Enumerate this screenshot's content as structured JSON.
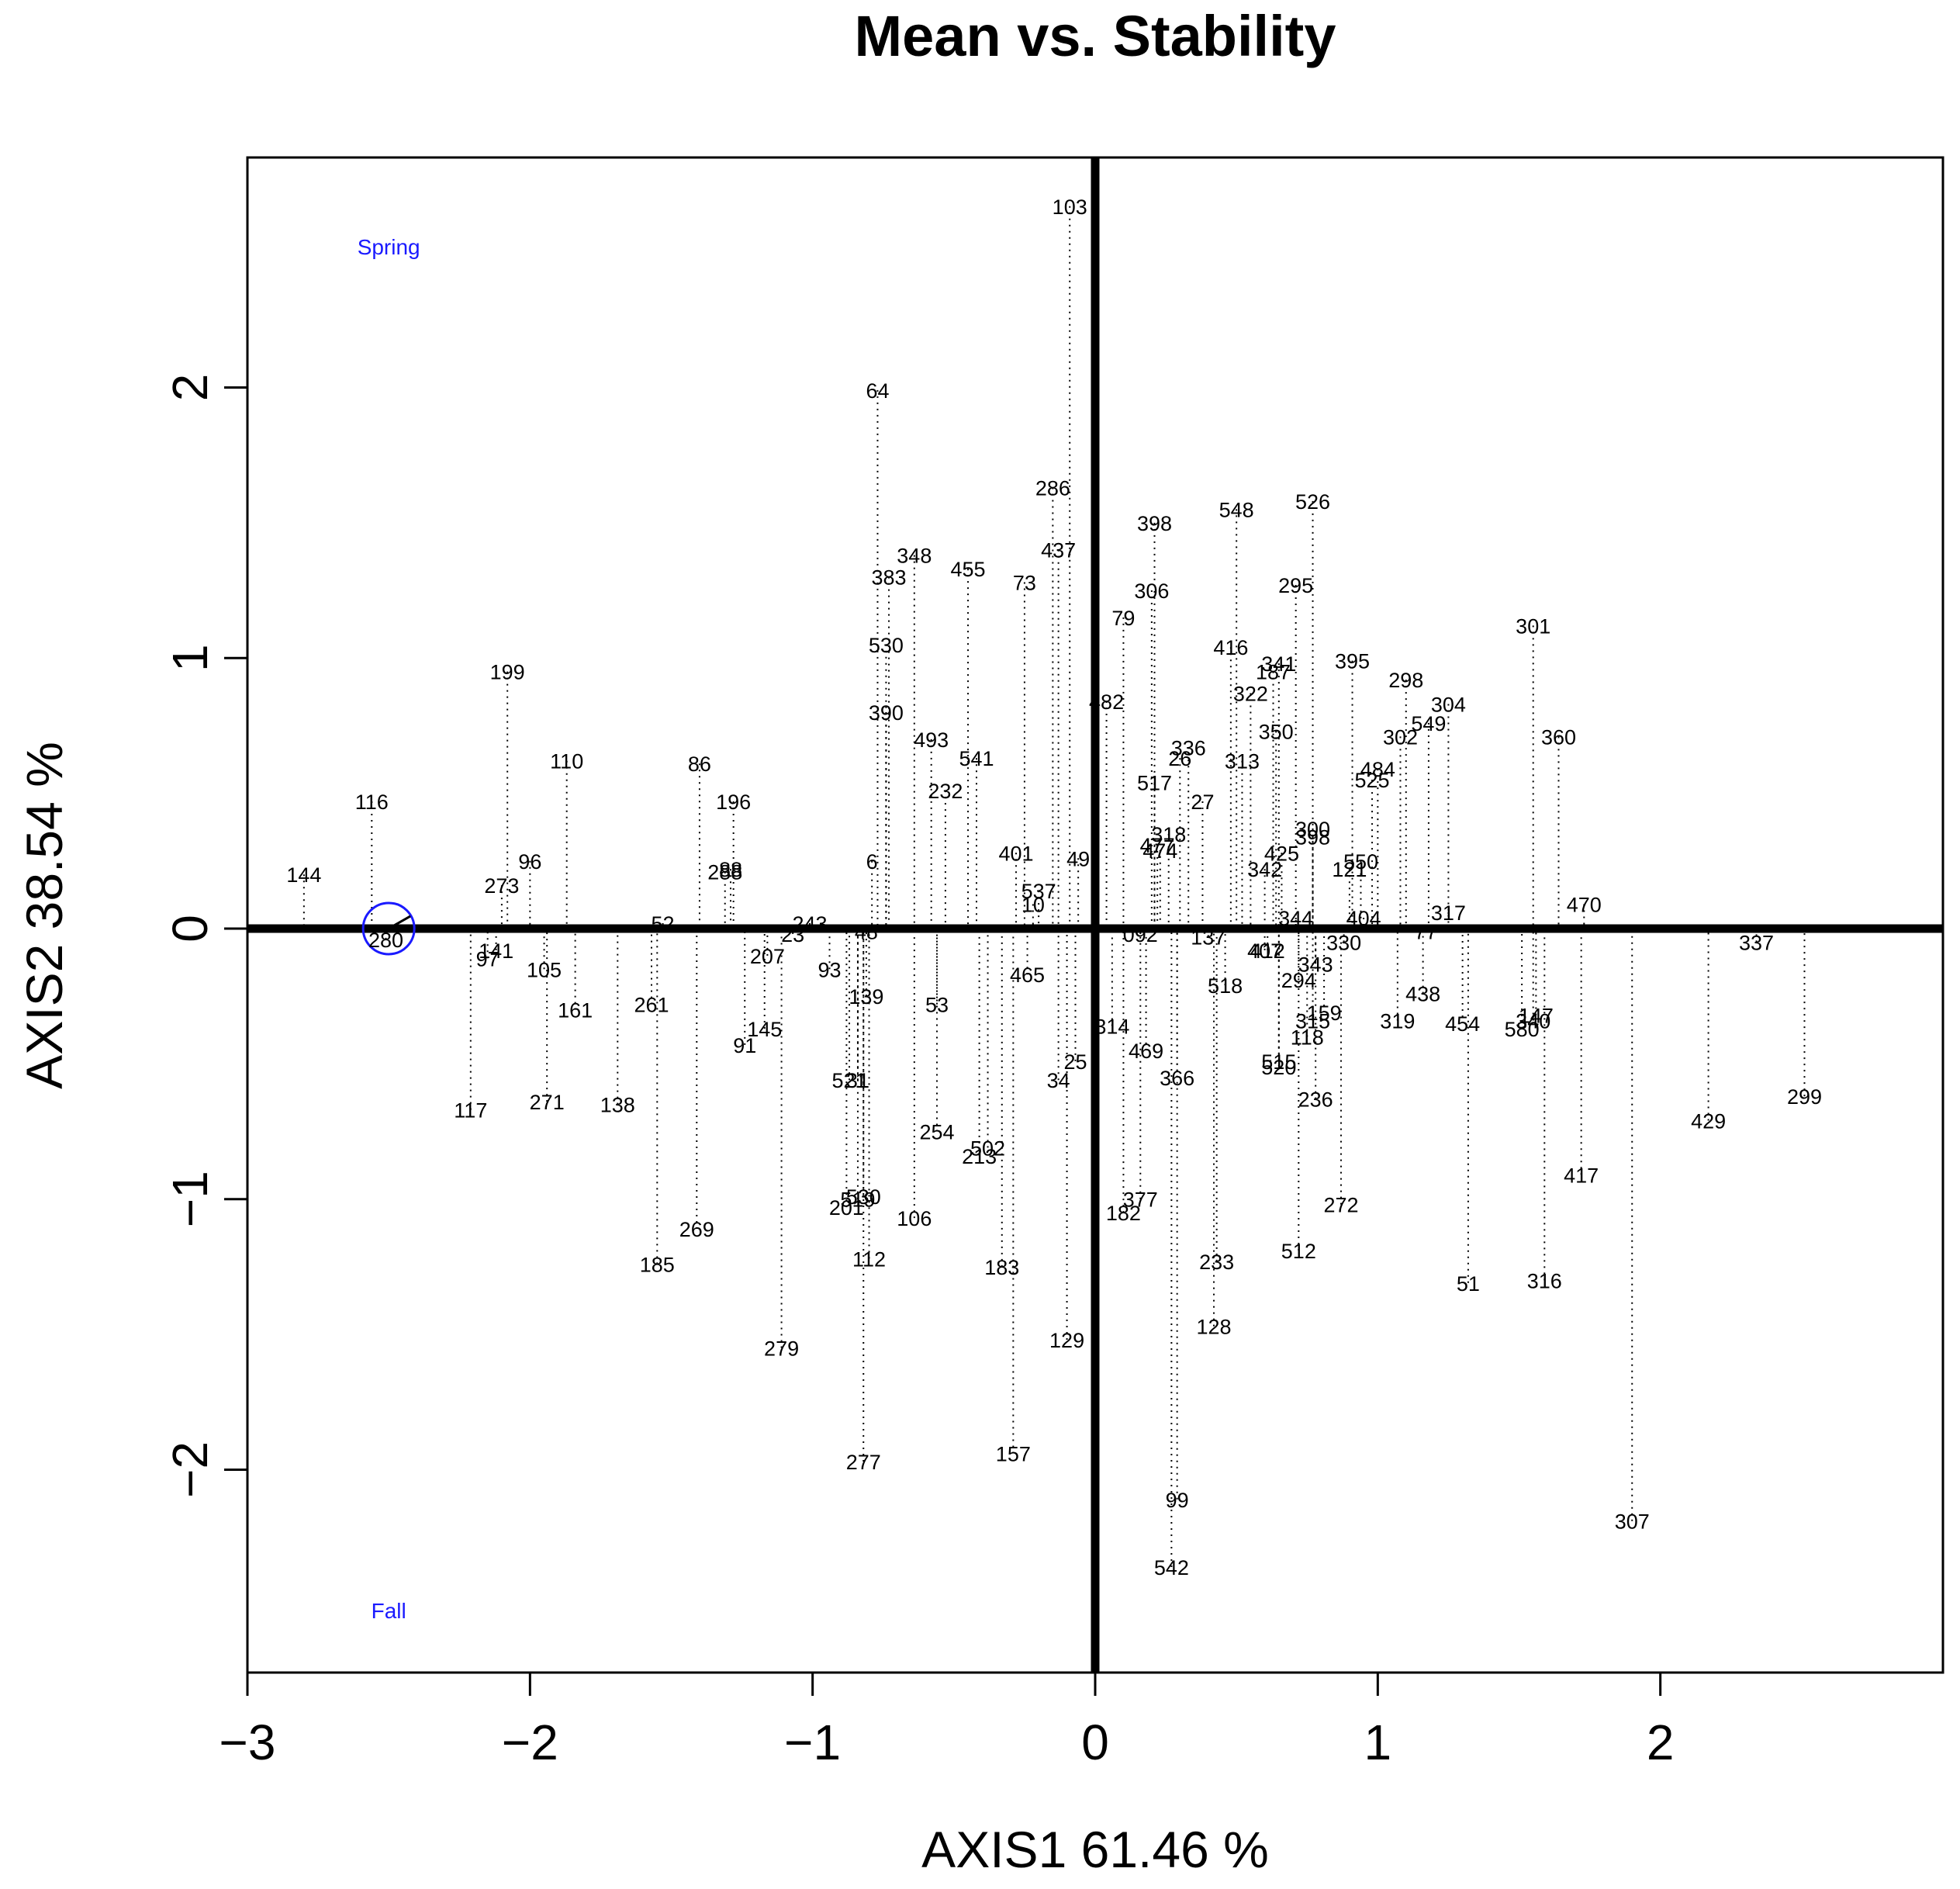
{
  "chart_data": {
    "type": "scatter",
    "title": "Mean vs. Stability",
    "xlabel": "AXIS1 61.46 %",
    "ylabel": "AXIS2 38.54 %",
    "xlim": [
      -3.0,
      3.0
    ],
    "ylim": [
      -2.75,
      2.85
    ],
    "xticks": [
      {
        "value": -3,
        "label": "−3"
      },
      {
        "value": -2,
        "label": "−2"
      },
      {
        "value": -1,
        "label": "−1"
      },
      {
        "value": 0,
        "label": "0"
      },
      {
        "value": 1,
        "label": "1"
      },
      {
        "value": 2,
        "label": "2"
      }
    ],
    "yticks": [
      {
        "value": -2,
        "label": "−2"
      },
      {
        "value": -1,
        "label": "−1"
      },
      {
        "value": 0,
        "label": "0"
      },
      {
        "value": 1,
        "label": "1"
      },
      {
        "value": 2,
        "label": "2"
      }
    ],
    "environments": [
      {
        "name": "Spring",
        "x": -2.5,
        "y": 2.52
      },
      {
        "name": "Fall",
        "x": -2.5,
        "y": -2.52
      }
    ],
    "average_environment": {
      "x": -2.5,
      "y": 0.0
    },
    "colors": {
      "axis": "#000000",
      "environment": "#1a1aff"
    },
    "genotypes": [
      {
        "label": "103",
        "x": -0.09,
        "y": 2.67
      },
      {
        "label": "64",
        "x": -0.77,
        "y": 1.99
      },
      {
        "label": "286",
        "x": -0.15,
        "y": 1.63
      },
      {
        "label": "437",
        "x": -0.13,
        "y": 1.4
      },
      {
        "label": "398",
        "x": 0.21,
        "y": 1.5
      },
      {
        "label": "548",
        "x": 0.5,
        "y": 1.55
      },
      {
        "label": "526",
        "x": 0.77,
        "y": 1.58
      },
      {
        "label": "348",
        "x": -0.64,
        "y": 1.38
      },
      {
        "label": "455",
        "x": -0.45,
        "y": 1.33
      },
      {
        "label": "383",
        "x": -0.73,
        "y": 1.3
      },
      {
        "label": "73",
        "x": -0.25,
        "y": 1.28
      },
      {
        "label": "306",
        "x": 0.2,
        "y": 1.25
      },
      {
        "label": "295",
        "x": 0.71,
        "y": 1.27
      },
      {
        "label": "79",
        "x": 0.1,
        "y": 1.15
      },
      {
        "label": "301",
        "x": 1.55,
        "y": 1.12
      },
      {
        "label": "530",
        "x": -0.74,
        "y": 1.05
      },
      {
        "label": "416",
        "x": 0.48,
        "y": 1.04
      },
      {
        "label": "341",
        "x": 0.65,
        "y": 0.98
      },
      {
        "label": "187",
        "x": 0.63,
        "y": 0.95
      },
      {
        "label": "395",
        "x": 0.91,
        "y": 0.99
      },
      {
        "label": "298",
        "x": 1.1,
        "y": 0.92
      },
      {
        "label": "322",
        "x": 0.55,
        "y": 0.87
      },
      {
        "label": "482",
        "x": 0.04,
        "y": 0.84
      },
      {
        "label": "304",
        "x": 1.25,
        "y": 0.83
      },
      {
        "label": "390",
        "x": -0.74,
        "y": 0.8
      },
      {
        "label": "549",
        "x": 1.18,
        "y": 0.76
      },
      {
        "label": "350",
        "x": 0.64,
        "y": 0.73
      },
      {
        "label": "360",
        "x": 1.64,
        "y": 0.71
      },
      {
        "label": "302",
        "x": 1.08,
        "y": 0.71
      },
      {
        "label": "493",
        "x": -0.58,
        "y": 0.7
      },
      {
        "label": "336",
        "x": 0.33,
        "y": 0.67
      },
      {
        "label": "541",
        "x": -0.42,
        "y": 0.63
      },
      {
        "label": "26",
        "x": 0.3,
        "y": 0.63
      },
      {
        "label": "313",
        "x": 0.52,
        "y": 0.62
      },
      {
        "label": "484",
        "x": 1.0,
        "y": 0.59
      },
      {
        "label": "525",
        "x": 0.98,
        "y": 0.55
      },
      {
        "label": "517",
        "x": 0.21,
        "y": 0.54
      },
      {
        "label": "232",
        "x": -0.53,
        "y": 0.51
      },
      {
        "label": "27",
        "x": 0.38,
        "y": 0.47
      },
      {
        "label": "300",
        "x": 0.77,
        "y": 0.37
      },
      {
        "label": "318",
        "x": 0.26,
        "y": 0.35
      },
      {
        "label": "398",
        "x": 0.77,
        "y": 0.34
      },
      {
        "label": "477",
        "x": 0.22,
        "y": 0.31
      },
      {
        "label": "474",
        "x": 0.23,
        "y": 0.29
      },
      {
        "label": "425",
        "x": 0.66,
        "y": 0.28
      },
      {
        "label": "401",
        "x": -0.28,
        "y": 0.28
      },
      {
        "label": "550",
        "x": 0.94,
        "y": 0.25
      },
      {
        "label": "49",
        "x": -0.06,
        "y": 0.26
      },
      {
        "label": "6",
        "x": -0.79,
        "y": 0.25
      },
      {
        "label": "342",
        "x": 0.6,
        "y": 0.22
      },
      {
        "label": "121",
        "x": 0.9,
        "y": 0.22
      },
      {
        "label": "537",
        "x": -0.2,
        "y": 0.14
      },
      {
        "label": "10",
        "x": -0.22,
        "y": 0.09
      },
      {
        "label": "470",
        "x": 1.73,
        "y": 0.09
      },
      {
        "label": "317",
        "x": 1.25,
        "y": 0.06
      },
      {
        "label": "344",
        "x": 0.71,
        "y": 0.04
      },
      {
        "label": "404",
        "x": 0.95,
        "y": 0.04
      },
      {
        "label": "243",
        "x": -1.01,
        "y": 0.02
      },
      {
        "label": "52",
        "x": -1.53,
        "y": 0.02
      },
      {
        "label": "23",
        "x": -1.07,
        "y": -0.02
      },
      {
        "label": "48",
        "x": -0.81,
        "y": -0.01
      },
      {
        "label": "77",
        "x": 1.17,
        "y": -0.01
      },
      {
        "label": "137",
        "x": 0.4,
        "y": -0.03
      },
      {
        "label": "092",
        "x": 0.16,
        "y": -0.02
      },
      {
        "label": "330",
        "x": 0.88,
        "y": -0.05
      },
      {
        "label": "407",
        "x": 0.6,
        "y": -0.08
      },
      {
        "label": "412",
        "x": 0.61,
        "y": -0.08
      },
      {
        "label": "337",
        "x": 2.34,
        "y": -0.05
      },
      {
        "label": "141",
        "x": -2.12,
        "y": -0.08
      },
      {
        "label": "97",
        "x": -2.15,
        "y": -0.11
      },
      {
        "label": "207",
        "x": -1.16,
        "y": -0.1
      },
      {
        "label": "343",
        "x": 0.78,
        "y": -0.13
      },
      {
        "label": "105",
        "x": -1.95,
        "y": -0.15
      },
      {
        "label": "93",
        "x": -0.94,
        "y": -0.15
      },
      {
        "label": "465",
        "x": -0.24,
        "y": -0.17
      },
      {
        "label": "294",
        "x": 0.72,
        "y": -0.19
      },
      {
        "label": "518",
        "x": 0.46,
        "y": -0.21
      },
      {
        "label": "438",
        "x": 1.16,
        "y": -0.24
      },
      {
        "label": "139",
        "x": -0.81,
        "y": -0.25
      },
      {
        "label": "261",
        "x": -1.57,
        "y": -0.28
      },
      {
        "label": "53",
        "x": -0.56,
        "y": -0.28
      },
      {
        "label": "161",
        "x": -1.84,
        "y": -0.3
      },
      {
        "label": "159",
        "x": 0.81,
        "y": -0.31
      },
      {
        "label": "319",
        "x": 1.07,
        "y": -0.34
      },
      {
        "label": "454",
        "x": 1.3,
        "y": -0.35
      },
      {
        "label": "147",
        "x": 1.56,
        "y": -0.32
      },
      {
        "label": "340",
        "x": 1.55,
        "y": -0.34
      },
      {
        "label": "580",
        "x": 1.51,
        "y": -0.37
      },
      {
        "label": "315",
        "x": 0.77,
        "y": -0.34
      },
      {
        "label": "145",
        "x": -1.17,
        "y": -0.37
      },
      {
        "label": "314",
        "x": 0.06,
        "y": -0.36
      },
      {
        "label": "118",
        "x": 0.75,
        "y": -0.4
      },
      {
        "label": "91",
        "x": -1.24,
        "y": -0.43
      },
      {
        "label": "469",
        "x": 0.18,
        "y": -0.45
      },
      {
        "label": "25",
        "x": -0.07,
        "y": -0.49
      },
      {
        "label": "515",
        "x": 0.65,
        "y": -0.49
      },
      {
        "label": "520",
        "x": 0.65,
        "y": -0.51
      },
      {
        "label": "34",
        "x": -0.13,
        "y": -0.56
      },
      {
        "label": "366",
        "x": 0.29,
        "y": -0.55
      },
      {
        "label": "521",
        "x": -0.87,
        "y": -0.56
      },
      {
        "label": "31",
        "x": -0.84,
        "y": -0.56
      },
      {
        "label": "236",
        "x": 0.78,
        "y": -0.63
      },
      {
        "label": "117",
        "x": -2.21,
        "y": -0.67
      },
      {
        "label": "271",
        "x": -1.94,
        "y": -0.64
      },
      {
        "label": "138",
        "x": -1.69,
        "y": -0.65
      },
      {
        "label": "299",
        "x": 2.51,
        "y": -0.62
      },
      {
        "label": "429",
        "x": 2.17,
        "y": -0.71
      },
      {
        "label": "254",
        "x": -0.56,
        "y": -0.75
      },
      {
        "label": "502",
        "x": -0.38,
        "y": -0.81
      },
      {
        "label": "213",
        "x": -0.41,
        "y": -0.84
      },
      {
        "label": "417",
        "x": 1.72,
        "y": -0.91
      },
      {
        "label": "377",
        "x": 0.16,
        "y": -1.0
      },
      {
        "label": "530",
        "x": -0.82,
        "y": -0.99
      },
      {
        "label": "519",
        "x": -0.84,
        "y": -1.0
      },
      {
        "label": "201",
        "x": -0.88,
        "y": -1.03
      },
      {
        "label": "272",
        "x": 0.87,
        "y": -1.02
      },
      {
        "label": "182",
        "x": 0.1,
        "y": -1.05
      },
      {
        "label": "106",
        "x": -0.64,
        "y": -1.07
      },
      {
        "label": "269",
        "x": -1.41,
        "y": -1.11
      },
      {
        "label": "512",
        "x": 0.72,
        "y": -1.19
      },
      {
        "label": "185",
        "x": -1.55,
        "y": -1.24
      },
      {
        "label": "112",
        "x": -0.8,
        "y": -1.22
      },
      {
        "label": "233",
        "x": 0.43,
        "y": -1.23
      },
      {
        "label": "183",
        "x": -0.33,
        "y": -1.25
      },
      {
        "label": "51",
        "x": 1.32,
        "y": -1.31
      },
      {
        "label": "316",
        "x": 1.59,
        "y": -1.3
      },
      {
        "label": "128",
        "x": 0.42,
        "y": -1.47
      },
      {
        "label": "129",
        "x": -0.1,
        "y": -1.52
      },
      {
        "label": "279",
        "x": -1.11,
        "y": -1.55
      },
      {
        "label": "157",
        "x": -0.29,
        "y": -1.94
      },
      {
        "label": "277",
        "x": -0.82,
        "y": -1.97
      },
      {
        "label": "99",
        "x": 0.29,
        "y": -2.11
      },
      {
        "label": "307",
        "x": 1.9,
        "y": -2.19
      },
      {
        "label": "542",
        "x": 0.27,
        "y": -2.36
      },
      {
        "label": "199",
        "x": -2.08,
        "y": 0.95
      },
      {
        "label": "110",
        "x": -1.87,
        "y": 0.62
      },
      {
        "label": "86",
        "x": -1.4,
        "y": 0.61
      },
      {
        "label": "116",
        "x": -2.56,
        "y": 0.47
      },
      {
        "label": "196",
        "x": -1.28,
        "y": 0.47
      },
      {
        "label": "96",
        "x": -2.0,
        "y": 0.25
      },
      {
        "label": "88",
        "x": -1.29,
        "y": 0.22
      },
      {
        "label": "288",
        "x": -1.31,
        "y": 0.21
      },
      {
        "label": "273",
        "x": -2.1,
        "y": 0.16
      },
      {
        "label": "144",
        "x": -2.8,
        "y": 0.2
      },
      {
        "label": "280",
        "x": -2.51,
        "y": -0.04
      }
    ]
  }
}
